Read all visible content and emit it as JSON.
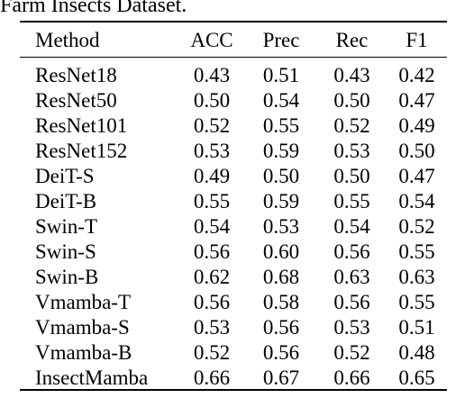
{
  "caption": "Farm Insects Dataset.",
  "table": {
    "headers": [
      "Method",
      "ACC",
      "Prec",
      "Rec",
      "F1"
    ],
    "rows": [
      {
        "method": "ResNet18",
        "values": [
          "0.43",
          "0.51",
          "0.43",
          "0.42"
        ]
      },
      {
        "method": "ResNet50",
        "values": [
          "0.50",
          "0.54",
          "0.50",
          "0.47"
        ]
      },
      {
        "method": "ResNet101",
        "values": [
          "0.52",
          "0.55",
          "0.52",
          "0.49"
        ]
      },
      {
        "method": "ResNet152",
        "values": [
          "0.53",
          "0.59",
          "0.53",
          "0.50"
        ]
      },
      {
        "method": "DeiT-S",
        "values": [
          "0.49",
          "0.50",
          "0.50",
          "0.47"
        ]
      },
      {
        "method": "DeiT-B",
        "values": [
          "0.55",
          "0.59",
          "0.55",
          "0.54"
        ]
      },
      {
        "method": "Swin-T",
        "values": [
          "0.54",
          "0.53",
          "0.54",
          "0.52"
        ]
      },
      {
        "method": "Swin-S",
        "values": [
          "0.56",
          "0.60",
          "0.56",
          "0.55"
        ]
      },
      {
        "method": "Swin-B",
        "values": [
          "0.62",
          "0.68",
          "0.63",
          "0.63"
        ],
        "bold": [
          false,
          true,
          false,
          false
        ]
      },
      {
        "method": "Vmamba-T",
        "values": [
          "0.56",
          "0.58",
          "0.56",
          "0.55"
        ]
      },
      {
        "method": "Vmamba-S",
        "values": [
          "0.53",
          "0.56",
          "0.53",
          "0.51"
        ]
      },
      {
        "method": "Vmamba-B",
        "values": [
          "0.52",
          "0.56",
          "0.52",
          "0.48"
        ]
      },
      {
        "method": "InsectMamba",
        "values": [
          "0.66",
          "0.67",
          "0.66",
          "0.65"
        ],
        "bold": [
          true,
          false,
          true,
          true
        ]
      }
    ]
  }
}
